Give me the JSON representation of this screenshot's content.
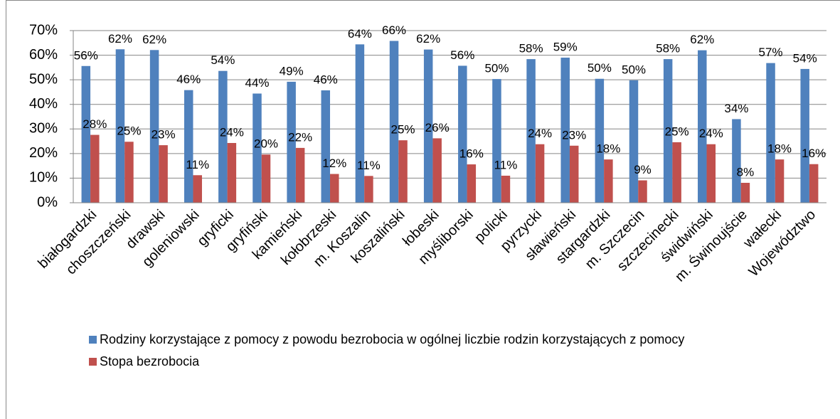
{
  "chart_data": {
    "type": "bar",
    "categories": [
      "białogardzki",
      "choszczeński",
      "drawski",
      "goleniowski",
      "gryficki",
      "gryfiński",
      "kamieński",
      "kołobrzeski",
      "m. Koszalin",
      "koszaliński",
      "łobeski",
      "myśliborski",
      "policki",
      "pyrzycki",
      "sławieński",
      "stargardzki",
      "m. Szczecin",
      "szczecinecki",
      "świdwiński",
      "m. Świnoujście",
      "wałecki",
      "Województwo"
    ],
    "series": [
      {
        "name": "Rodziny korzystające z pomocy z powodu bezrobocia w ogólnej liczbie rodzin korzystających z pomocy",
        "color": "#4f81bd",
        "values": [
          55.6,
          62.4,
          62.1,
          45.8,
          53.6,
          44.4,
          49.2,
          45.7,
          64.4,
          65.8,
          62.3,
          55.7,
          50.3,
          58.4,
          59.0,
          50.4,
          49.8,
          58.4,
          62.0,
          34.0,
          56.8,
          54.4
        ],
        "value_labels": [
          "56%",
          "62%",
          "62%",
          "46%",
          "54%",
          "44%",
          "49%",
          "46%",
          "64%",
          "66%",
          "62%",
          "56%",
          "50%",
          "58%",
          "59%",
          "50%",
          "50%",
          "58%",
          "62%",
          "34%",
          "57%",
          "54%"
        ]
      },
      {
        "name": "Stopa bezrobocia",
        "color": "#c0504d",
        "values": [
          27.6,
          24.8,
          23.4,
          11.2,
          24.3,
          19.6,
          22.3,
          11.7,
          10.9,
          25.4,
          26.2,
          15.6,
          11.0,
          23.8,
          23.2,
          17.6,
          9.1,
          24.6,
          23.8,
          8.1,
          17.6,
          15.7
        ],
        "value_labels": [
          "28%",
          "25%",
          "23%",
          "11%",
          "24%",
          "20%",
          "22%",
          "12%",
          "11%",
          "25%",
          "26%",
          "16%",
          "11%",
          "24%",
          "23%",
          "18%",
          "9%",
          "25%",
          "24%",
          "8%",
          "18%",
          "16%"
        ]
      }
    ],
    "ylim": [
      0,
      70
    ],
    "yticks": [
      {
        "value": 0,
        "label": "0%"
      },
      {
        "value": 10,
        "label": "10%"
      },
      {
        "value": 20,
        "label": "20%"
      },
      {
        "value": 30,
        "label": "30%"
      },
      {
        "value": 40,
        "label": "40%"
      },
      {
        "value": 50,
        "label": "50%"
      },
      {
        "value": 60,
        "label": "60%"
      },
      {
        "value": 70,
        "label": "70%"
      }
    ],
    "grid": true,
    "legend": "bottom"
  }
}
